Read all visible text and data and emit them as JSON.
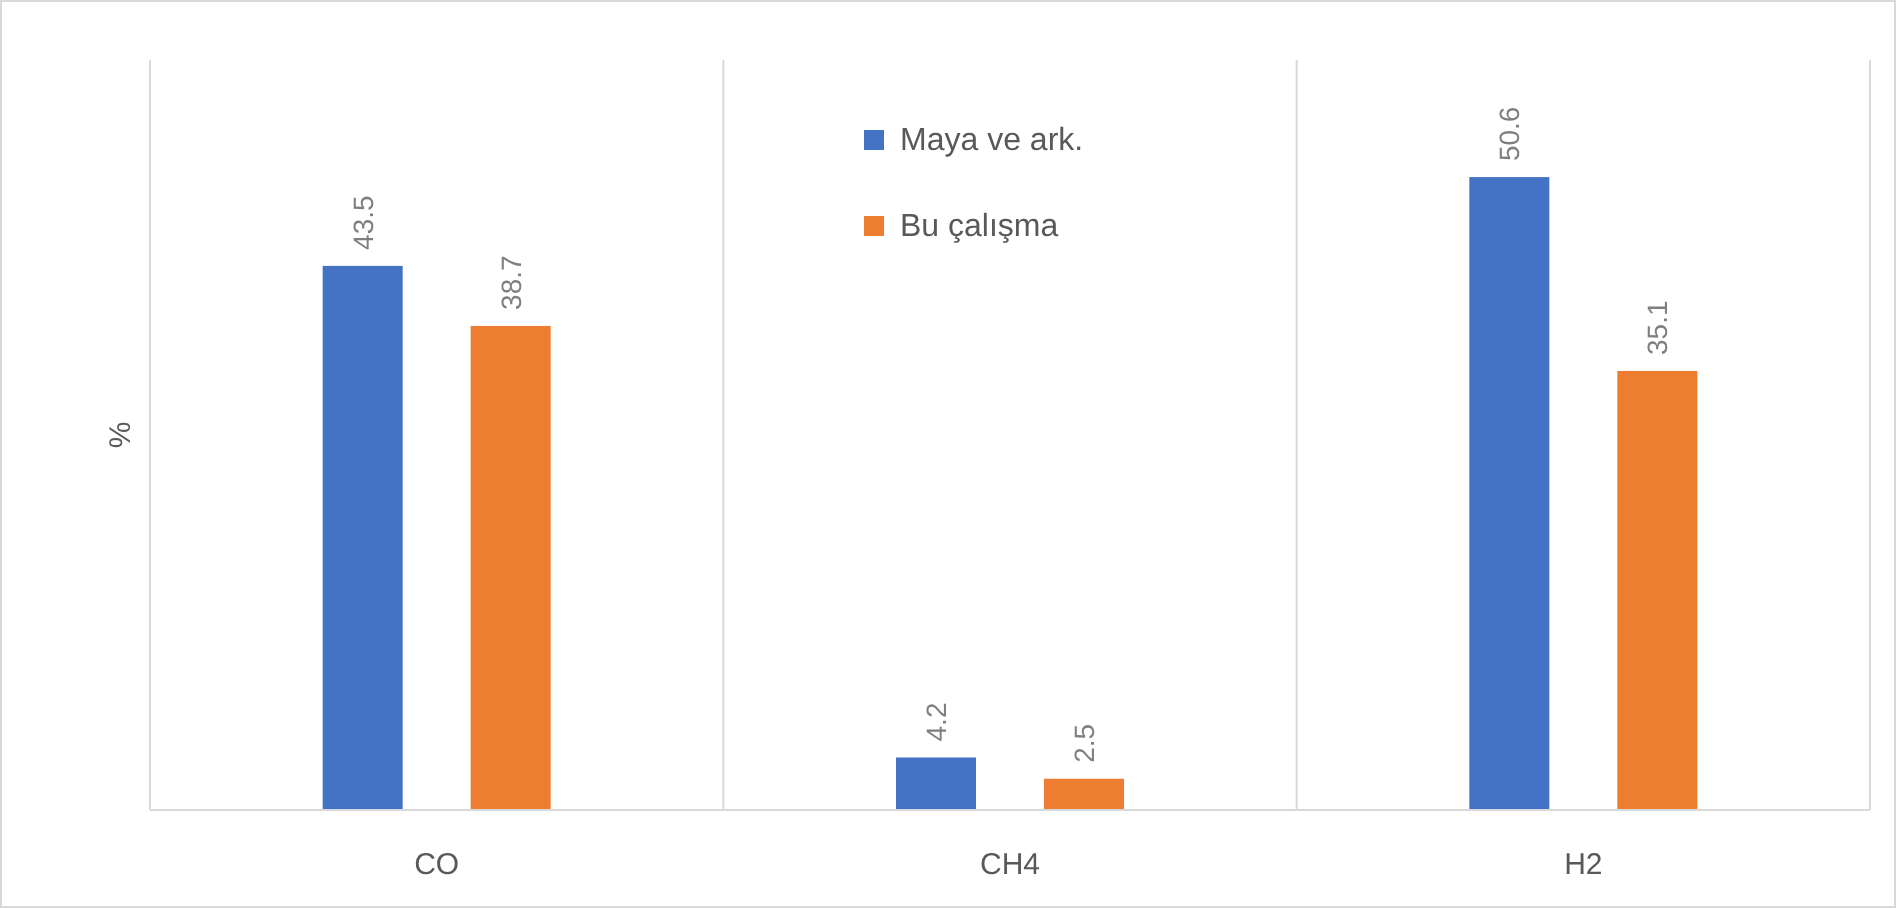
{
  "chart_data": {
    "type": "bar",
    "ylabel": "%",
    "categories": [
      "CO",
      "CH4",
      "H2"
    ],
    "series": [
      {
        "name": "Maya ve ark.",
        "color": "#4472c4",
        "values": [
          43.5,
          4.2,
          50.6
        ]
      },
      {
        "name": "Bu çalışma",
        "color": "#ed7d31",
        "values": [
          38.7,
          2.5,
          35.1
        ]
      }
    ],
    "data_labels": true,
    "grid": "x",
    "legend": "top"
  }
}
